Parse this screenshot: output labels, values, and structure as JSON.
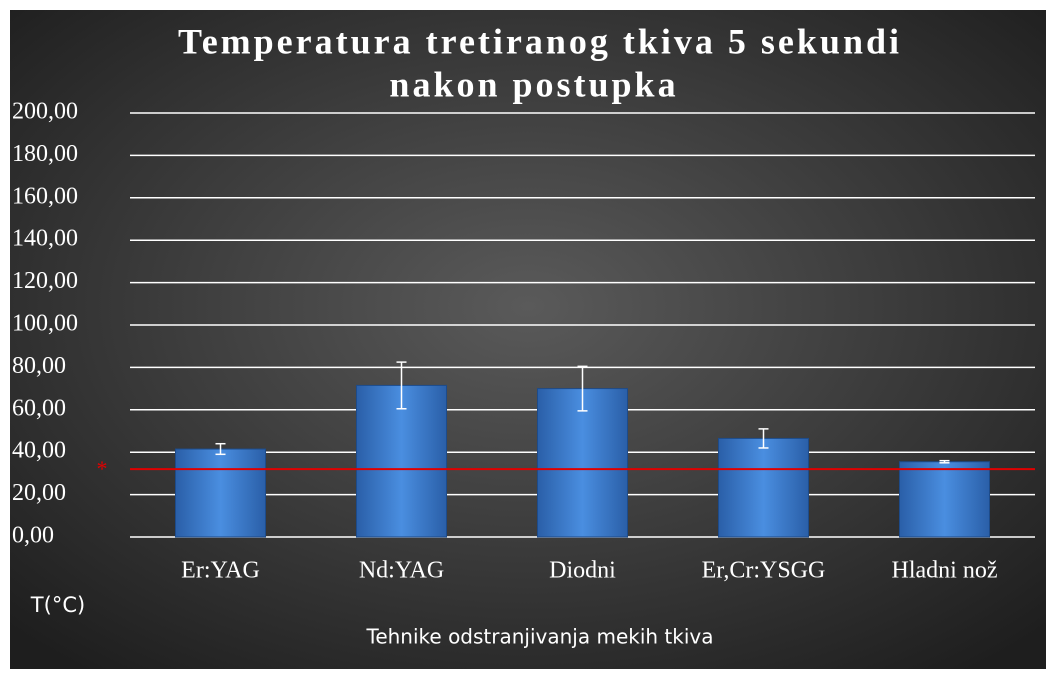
{
  "chart_data": {
    "type": "bar",
    "title": "Temperatura tretiranog tkiva 5 sekundi",
    "subtitle": "nakon postupka",
    "categories": [
      "Er:YAG",
      "Nd:YAG",
      "Diodni",
      "Er,Cr:YSGG",
      "Hladni nož"
    ],
    "values": [
      41.5,
      71.5,
      70,
      46.5,
      35.5
    ],
    "errors": [
      2.5,
      11,
      10.5,
      4.5,
      0.5
    ],
    "color": "#3f7fd0",
    "ylim": [
      0,
      200
    ],
    "yticks": [
      {
        "value": 0,
        "label": "0,00"
      },
      {
        "value": 20,
        "label": "20,00"
      },
      {
        "value": 40,
        "label": "40,00"
      },
      {
        "value": 60,
        "label": "60,00"
      },
      {
        "value": 80,
        "label": "80,00"
      },
      {
        "value": 100,
        "label": "100,00"
      },
      {
        "value": 120,
        "label": "120,00"
      },
      {
        "value": 140,
        "label": "140,00"
      },
      {
        "value": 160,
        "label": "160,00"
      },
      {
        "value": 180,
        "label": "180,00"
      },
      {
        "value": 200,
        "label": "200,00"
      }
    ],
    "grid": true,
    "y_axis_label": "T(°C)",
    "x_axis_label": "Tehnike odstranjivanja mekih tkiva",
    "reference_line": {
      "value": 32,
      "label": "*",
      "color": "#e00000"
    }
  }
}
